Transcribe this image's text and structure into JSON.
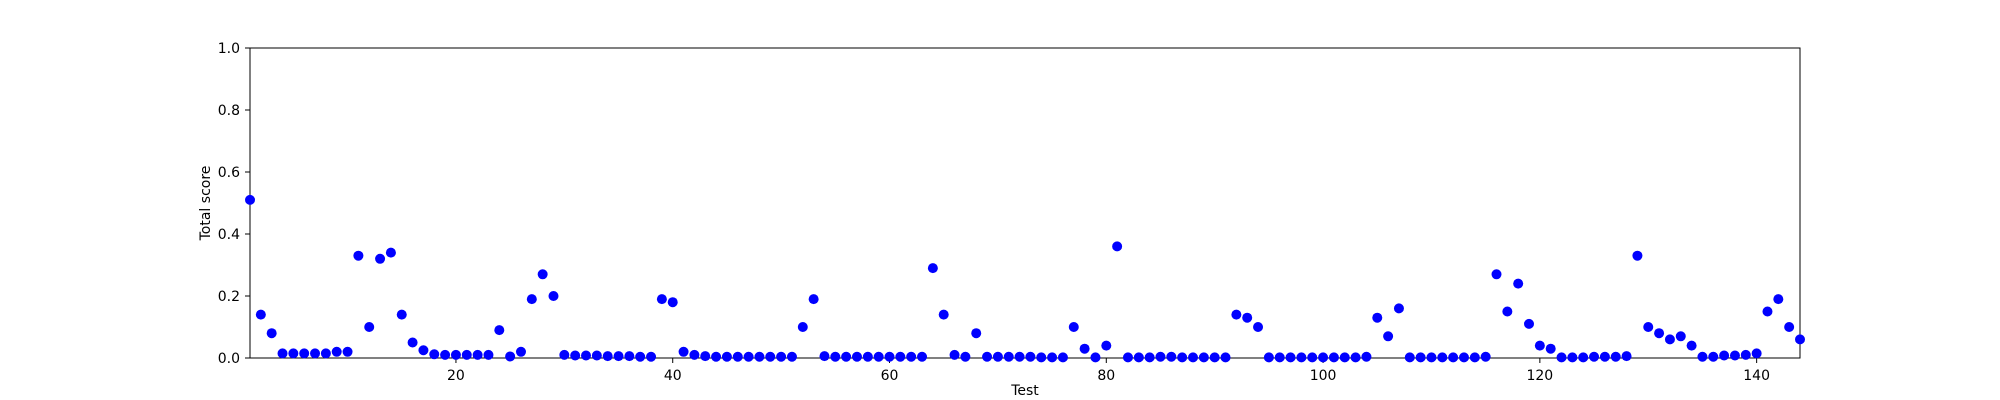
{
  "chart_data": {
    "type": "scatter",
    "title": "",
    "xlabel": "Test",
    "ylabel": "Total score",
    "xlim": [
      1,
      144
    ],
    "ylim": [
      0,
      1.0
    ],
    "grid": false,
    "marker_color": "#0000ff",
    "x_ticks": [
      20,
      40,
      60,
      80,
      100,
      120,
      140
    ],
    "y_ticks": [
      0.0,
      0.2,
      0.4,
      0.6,
      0.8,
      1.0
    ],
    "x_tick_labels": [
      "20",
      "40",
      "60",
      "80",
      "100",
      "120",
      "140"
    ],
    "y_tick_labels": [
      "0.0",
      "0.2",
      "0.4",
      "0.6",
      "0.8",
      "1.0"
    ],
    "x": [
      1,
      2,
      3,
      4,
      5,
      6,
      7,
      8,
      9,
      10,
      11,
      12,
      13,
      14,
      15,
      16,
      17,
      18,
      19,
      20,
      21,
      22,
      23,
      24,
      25,
      26,
      27,
      28,
      29,
      30,
      31,
      32,
      33,
      34,
      35,
      36,
      37,
      38,
      39,
      40,
      41,
      42,
      43,
      44,
      45,
      46,
      47,
      48,
      49,
      50,
      51,
      52,
      53,
      54,
      55,
      56,
      57,
      58,
      59,
      60,
      61,
      62,
      63,
      64,
      65,
      66,
      67,
      68,
      69,
      70,
      71,
      72,
      73,
      74,
      75,
      76,
      77,
      78,
      79,
      80,
      81,
      82,
      83,
      84,
      85,
      86,
      87,
      88,
      89,
      90,
      91,
      92,
      93,
      94,
      95,
      96,
      97,
      98,
      99,
      100,
      101,
      102,
      103,
      104,
      105,
      106,
      107,
      108,
      109,
      110,
      111,
      112,
      113,
      114,
      115,
      116,
      117,
      118,
      119,
      120,
      121,
      122,
      123,
      124,
      125,
      126,
      127,
      128,
      129,
      130,
      131,
      132,
      133,
      134,
      135,
      136,
      137,
      138,
      139,
      140,
      141,
      142,
      143,
      144
    ],
    "y": [
      0.51,
      0.14,
      0.08,
      0.015,
      0.015,
      0.015,
      0.015,
      0.015,
      0.02,
      0.02,
      0.33,
      0.1,
      0.32,
      0.34,
      0.14,
      0.05,
      0.025,
      0.012,
      0.01,
      0.01,
      0.01,
      0.01,
      0.01,
      0.09,
      0.005,
      0.02,
      0.19,
      0.27,
      0.2,
      0.01,
      0.008,
      0.008,
      0.008,
      0.006,
      0.006,
      0.006,
      0.004,
      0.004,
      0.19,
      0.18,
      0.02,
      0.01,
      0.006,
      0.004,
      0.004,
      0.004,
      0.004,
      0.004,
      0.004,
      0.004,
      0.004,
      0.1,
      0.19,
      0.006,
      0.004,
      0.004,
      0.004,
      0.004,
      0.004,
      0.004,
      0.004,
      0.004,
      0.004,
      0.29,
      0.14,
      0.01,
      0.004,
      0.08,
      0.004,
      0.004,
      0.004,
      0.004,
      0.004,
      0.002,
      0.002,
      0.002,
      0.1,
      0.03,
      0.002,
      0.04,
      0.36,
      0.002,
      0.002,
      0.002,
      0.004,
      0.004,
      0.002,
      0.002,
      0.002,
      0.002,
      0.002,
      0.14,
      0.13,
      0.1,
      0.002,
      0.002,
      0.002,
      0.002,
      0.002,
      0.002,
      0.002,
      0.002,
      0.002,
      0.004,
      0.13,
      0.07,
      0.16,
      0.002,
      0.002,
      0.002,
      0.002,
      0.002,
      0.002,
      0.002,
      0.004,
      0.27,
      0.15,
      0.24,
      0.11,
      0.04,
      0.03,
      0.002,
      0.002,
      0.002,
      0.004,
      0.004,
      0.004,
      0.006,
      0.33,
      0.1,
      0.08,
      0.06,
      0.07,
      0.04,
      0.004,
      0.004,
      0.008,
      0.008,
      0.01,
      0.015,
      0.15,
      0.19,
      0.1,
      0.06
    ]
  }
}
